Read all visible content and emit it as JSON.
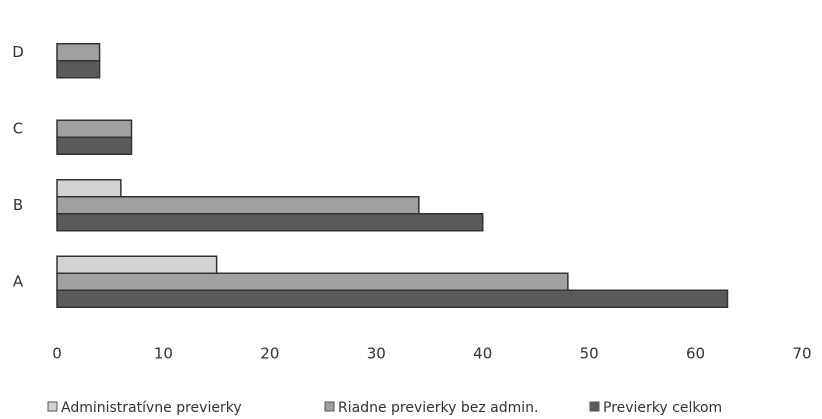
{
  "chart_data": {
    "type": "bar",
    "orientation": "horizontal",
    "categories": [
      "A",
      "B",
      "C",
      "D"
    ],
    "series": [
      {
        "name": "Administratívne previerky",
        "color": "#d2d2d2",
        "values": [
          15,
          6,
          0,
          0
        ]
      },
      {
        "name": "Riadne previerky bez admin.",
        "color": "#a0a0a0",
        "values": [
          48,
          34,
          7,
          4
        ]
      },
      {
        "name": "Previerky celkom",
        "color": "#5a5a5a",
        "values": [
          63,
          40,
          7,
          4
        ]
      }
    ],
    "xlim": [
      0,
      70
    ],
    "xticks": [
      0,
      10,
      20,
      30,
      40,
      50,
      60,
      70
    ],
    "grid": false,
    "legend": "bottom"
  }
}
